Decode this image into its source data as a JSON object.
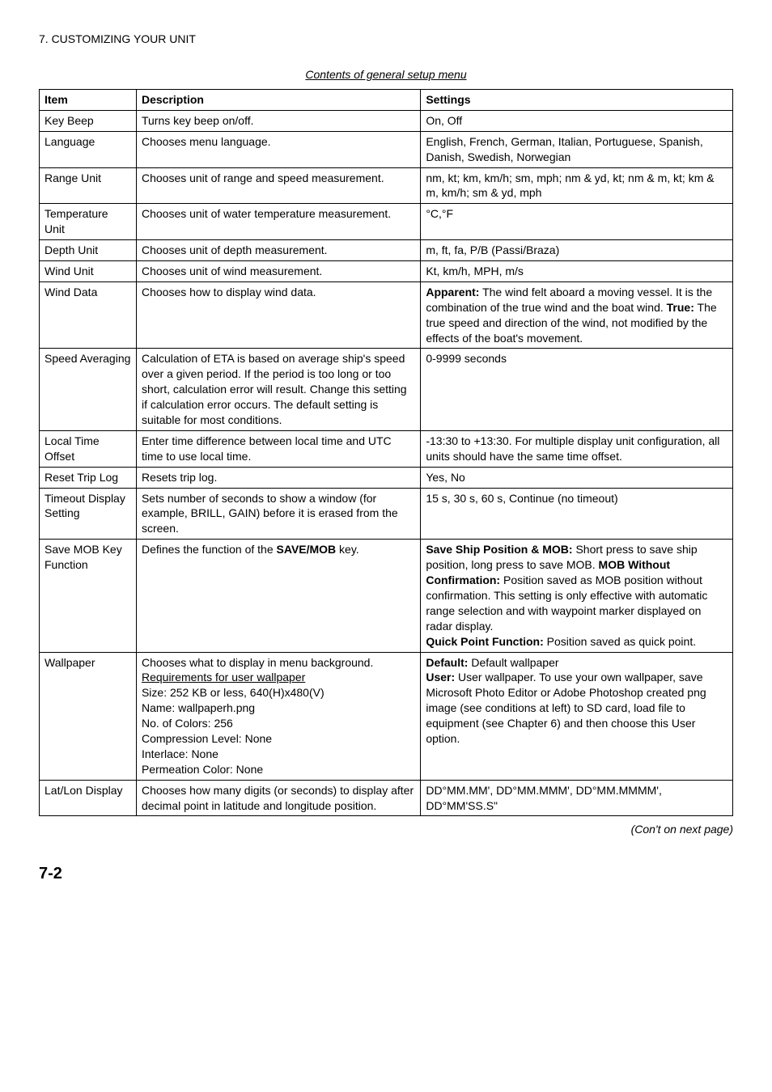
{
  "header": "7. CUSTOMIZING YOUR UNIT",
  "caption": "Contents of general setup menu",
  "columns": [
    "Item",
    "Description",
    "Settings"
  ],
  "rows": [
    {
      "item": "Key Beep",
      "desc": "Turns key beep on/off.",
      "settings": "On, Off"
    },
    {
      "item": "Language",
      "desc": "Chooses menu language.",
      "settings": "English, French, German, Italian, Portuguese, Spanish, Danish, Swedish, Norwegian"
    },
    {
      "item": "Range Unit",
      "desc": "Chooses unit of range and speed measurement.",
      "settings": "nm, kt; km, km/h; sm, mph; nm & yd, kt; nm & m, kt; km & m, km/h; sm & yd, mph"
    },
    {
      "item": "Temperature Unit",
      "desc": "Chooses unit of water temperature measurement.",
      "settings": "°C,°F"
    },
    {
      "item": "Depth Unit",
      "desc": "Chooses unit of depth measurement.",
      "settings": "m, ft, fa, P/B (Passi/Braza)"
    },
    {
      "item": "Wind Unit",
      "desc": "Chooses unit of wind measurement.",
      "settings": "Kt, km/h, MPH, m/s"
    },
    {
      "item": "Wind Data",
      "desc": "Chooses how to display wind data.",
      "settings_html": "<b>Apparent:</b> The wind felt aboard a moving vessel. It is the combination of the true wind and the boat wind. <b>True:</b> The true speed and direction of the wind, not modified by the effects of the boat's movement."
    },
    {
      "item": "Speed Averaging",
      "desc": "Calculation of ETA is based on average ship's speed over a given period. If the period is too long or too short, calculation error will result. Change this setting if calculation error occurs. The default setting is suitable for most conditions.",
      "settings": "0-9999 seconds"
    },
    {
      "item": "Local Time Offset",
      "desc": "Enter time difference between local time and UTC time to use local time.",
      "settings": "-13:30 to +13:30. For multiple display unit configuration, all units should have the same time offset."
    },
    {
      "item": "Reset Trip Log",
      "desc": "Resets trip log.",
      "settings": "Yes, No"
    },
    {
      "item": "Timeout Display Setting",
      "desc": "Sets number of seconds to show a window (for example, BRILL, GAIN) before it is erased from the screen.",
      "settings": "15 s, 30 s, 60 s, Continue (no timeout)"
    },
    {
      "item": "Save MOB Key Function",
      "desc_html": "Defines the function of the <b>SAVE/MOB</b> key.",
      "settings_html": "<b>Save Ship Position &amp; MOB:</b> Short press to save ship position, long press to save MOB. <b>MOB Without Confirmation:</b> Position saved as MOB position without confirmation. This setting is only effective with automatic range selection and with waypoint marker displayed on radar display.<br><b>Quick Point Function:</b> Position saved as quick point."
    },
    {
      "item": "Wallpaper",
      "desc_html": "Chooses what to display in menu background.<br><span class=\"underline\">Requirements for user wallpaper</span><br>Size: 252 KB or less, 640(H)x480(V)<br>Name: wallpaperh.png<br>No. of Colors: 256<br>Compression Level: None<br>Interlace: None<br>Permeation Color: None",
      "settings_html": "<b>Default:</b> Default wallpaper<br><b>User:</b> User wallpaper. To use your own wallpaper, save Microsoft Photo Editor or Adobe Photoshop created png image (see conditions at left) to SD card, load file to equipment (see Chapter 6) and then choose this User option."
    },
    {
      "item": "Lat/Lon Display",
      "desc": "Chooses how many digits (or seconds) to display after decimal point in latitude and longitude position.",
      "settings": "DD°MM.MM', DD°MM.MMM', DD°MM.MMMM', DD°MM'SS.S\""
    }
  ],
  "footer": "(Con't on next page)",
  "page_num": "7-2"
}
